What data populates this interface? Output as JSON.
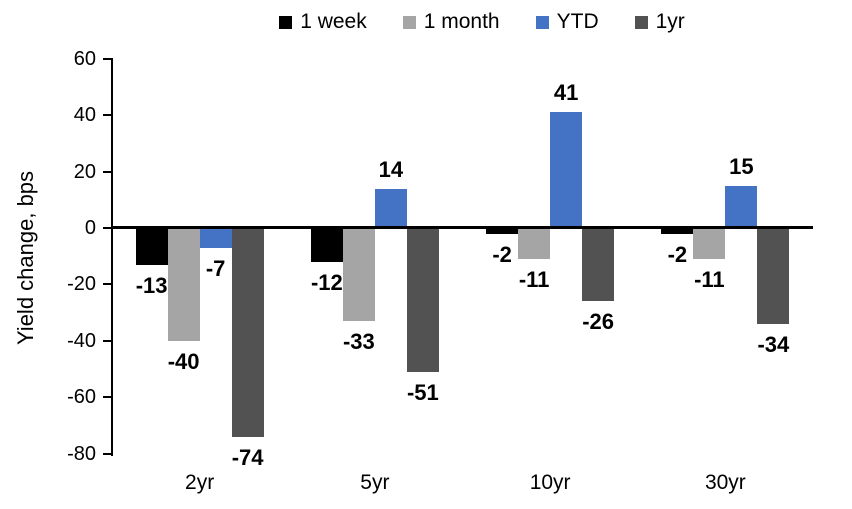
{
  "chart_data": {
    "type": "bar",
    "title": "",
    "ylabel": "Yield change, bps",
    "xlabel": "",
    "categories": [
      "2yr",
      "5yr",
      "10yr",
      "30yr"
    ],
    "series": [
      {
        "name": "1 week",
        "color": "#000000",
        "values": [
          -13,
          -12,
          -2,
          -2
        ]
      },
      {
        "name": "1 month",
        "color": "#A5A5A5",
        "values": [
          -40,
          -33,
          -11,
          -11
        ]
      },
      {
        "name": "YTD",
        "color": "#4472C4",
        "values": [
          -7,
          14,
          41,
          15
        ]
      },
      {
        "name": "1yr",
        "color": "#525252",
        "values": [
          -74,
          -51,
          -26,
          -34
        ]
      }
    ],
    "ylim": [
      -80,
      60
    ],
    "yticks": [
      60,
      40,
      20,
      0,
      -20,
      -40,
      -60,
      -80
    ],
    "grid": false,
    "legend_position": "top",
    "data_labels": true,
    "axis_color": "#000000"
  }
}
